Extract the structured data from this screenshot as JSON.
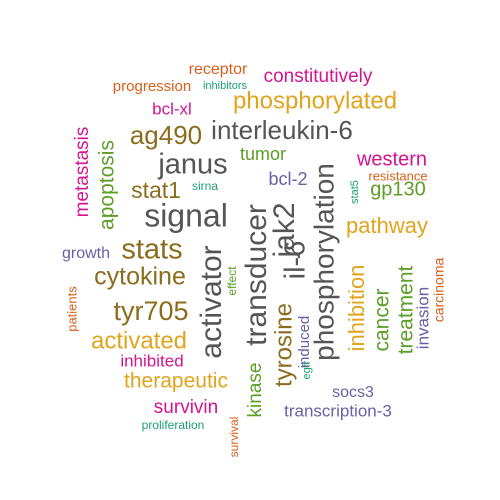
{
  "colors": {
    "gray": "#555555",
    "brown": "#8B6D1E",
    "gold": "#E2A31D",
    "magenta": "#D6148F",
    "orange": "#D7601B",
    "green": "#5C9E28",
    "teal": "#1B9E77",
    "purple": "#6A5FA6"
  },
  "words": [
    {
      "id": "receptor",
      "text": "receptor",
      "color": "orange"
    },
    {
      "id": "inhibitors",
      "text": "inhibitors",
      "color": "teal"
    },
    {
      "id": "progression",
      "text": "progression",
      "color": "orange"
    },
    {
      "id": "constitutively",
      "text": "constitutively",
      "color": "magenta"
    },
    {
      "id": "phosphorylated",
      "text": "phosphorylated",
      "color": "gold"
    },
    {
      "id": "bcl-xl",
      "text": "bcl-xl",
      "color": "magenta"
    },
    {
      "id": "interleukin-6",
      "text": "interleukin-6",
      "color": "gray"
    },
    {
      "id": "ag490",
      "text": "ag490",
      "color": "brown"
    },
    {
      "id": "metastasis",
      "text": "metastasis",
      "color": "magenta"
    },
    {
      "id": "apoptosis",
      "text": "apoptosis",
      "color": "green"
    },
    {
      "id": "janus",
      "text": "janus",
      "color": "gray"
    },
    {
      "id": "tumor",
      "text": "tumor",
      "color": "green"
    },
    {
      "id": "stat1",
      "text": "stat1",
      "color": "brown"
    },
    {
      "id": "sirna",
      "text": "sirna",
      "color": "teal"
    },
    {
      "id": "bcl-2",
      "text": "bcl-2",
      "color": "purple"
    },
    {
      "id": "western",
      "text": "western",
      "color": "magenta"
    },
    {
      "id": "resistance",
      "text": "resistance",
      "color": "orange"
    },
    {
      "id": "gp130",
      "text": "gp130",
      "color": "green"
    },
    {
      "id": "stat5",
      "text": "stat5",
      "color": "teal"
    },
    {
      "id": "signal",
      "text": "signal",
      "color": "gray"
    },
    {
      "id": "pathway",
      "text": "pathway",
      "color": "gold"
    },
    {
      "id": "phosphorylation",
      "text": "phosphorylation",
      "color": "gray"
    },
    {
      "id": "transducer",
      "text": "transducer",
      "color": "gray"
    },
    {
      "id": "jak2",
      "text": "jak2",
      "color": "gray"
    },
    {
      "id": "il-6",
      "text": "il-6",
      "color": "gray"
    },
    {
      "id": "stats",
      "text": "stats",
      "color": "brown"
    },
    {
      "id": "growth",
      "text": "growth",
      "color": "purple"
    },
    {
      "id": "cytokine",
      "text": "cytokine",
      "color": "brown"
    },
    {
      "id": "activator",
      "text": "activator",
      "color": "gray"
    },
    {
      "id": "effect",
      "text": "effect",
      "color": "green"
    },
    {
      "id": "carcinoma",
      "text": "carcinoma",
      "color": "orange"
    },
    {
      "id": "patients",
      "text": "patients",
      "color": "orange"
    },
    {
      "id": "tyr705",
      "text": "tyr705",
      "color": "brown"
    },
    {
      "id": "inhibition",
      "text": "inhibition",
      "color": "gold"
    },
    {
      "id": "cancer",
      "text": "cancer",
      "color": "green"
    },
    {
      "id": "treatment",
      "text": "treatment",
      "color": "green"
    },
    {
      "id": "invasion",
      "text": "invasion",
      "color": "purple"
    },
    {
      "id": "activated",
      "text": "activated",
      "color": "gold"
    },
    {
      "id": "tyrosine",
      "text": "tyrosine",
      "color": "brown"
    },
    {
      "id": "induced",
      "text": "induced",
      "color": "purple"
    },
    {
      "id": "egfr",
      "text": "egfr",
      "color": "teal"
    },
    {
      "id": "inhibited",
      "text": "inhibited",
      "color": "magenta"
    },
    {
      "id": "therapeutic",
      "text": "therapeutic",
      "color": "gold"
    },
    {
      "id": "kinase",
      "text": "kinase",
      "color": "green"
    },
    {
      "id": "socs3",
      "text": "socs3",
      "color": "purple"
    },
    {
      "id": "survivin",
      "text": "survivin",
      "color": "magenta"
    },
    {
      "id": "transcription-3",
      "text": "transcription-3",
      "color": "purple"
    },
    {
      "id": "survival",
      "text": "survival",
      "color": "orange"
    },
    {
      "id": "proliferation",
      "text": "proliferation",
      "color": "teal"
    }
  ]
}
